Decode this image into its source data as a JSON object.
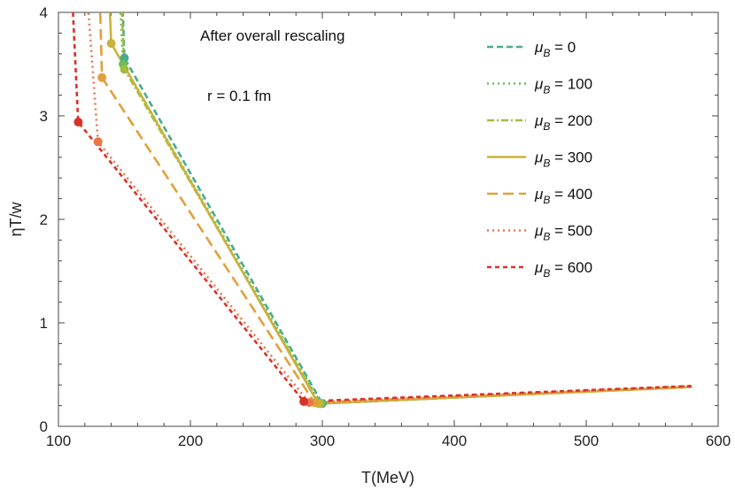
{
  "chart_data": {
    "type": "line",
    "title": "",
    "xlabel": "T(MeV)",
    "ylabel": "ηT/w",
    "xlim": [
      100,
      600
    ],
    "ylim": [
      0,
      4
    ],
    "xticks": [
      100,
      200,
      300,
      400,
      500,
      600
    ],
    "yticks": [
      0,
      1,
      2,
      3,
      4
    ],
    "annotations": [
      "After overall rescaling",
      "r = 0.1 fm"
    ],
    "legend_position": "top-right",
    "grid": false,
    "series": [
      {
        "name": "μB = 0",
        "mu_label": "μ",
        "sub_label": "B",
        "value_label": " = 0",
        "color": "#4aab8e",
        "dash": "7,4",
        "width": 2.6,
        "points": [
          [
            148,
            4.3
          ],
          [
            150,
            3.56
          ],
          [
            300,
            0.22
          ],
          [
            580,
            0.38
          ]
        ],
        "markers": [
          [
            150,
            3.56
          ],
          [
            300,
            0.22
          ]
        ]
      },
      {
        "name": "μB = 100",
        "mu_label": "μ",
        "sub_label": "B",
        "value_label": " = 100",
        "color": "#6cbc5a",
        "dash": "2,4",
        "width": 2.6,
        "points": [
          [
            146,
            4.3
          ],
          [
            149,
            3.5
          ],
          [
            299,
            0.22
          ],
          [
            580,
            0.38
          ]
        ],
        "markers": [
          [
            149,
            3.5
          ],
          [
            299,
            0.22
          ]
        ]
      },
      {
        "name": "μB = 200",
        "mu_label": "μ",
        "sub_label": "B",
        "value_label": " = 200",
        "color": "#a4bc3c",
        "dash": "8,3,2,3",
        "width": 2.6,
        "points": [
          [
            147,
            4.3
          ],
          [
            150,
            3.45
          ],
          [
            298,
            0.22
          ],
          [
            580,
            0.38
          ]
        ],
        "markers": [
          [
            150,
            3.45
          ],
          [
            298,
            0.22
          ]
        ]
      },
      {
        "name": "μB = 300",
        "mu_label": "μ",
        "sub_label": "B",
        "value_label": " = 300",
        "color": "#c9b23c",
        "dash": "",
        "width": 2.6,
        "points": [
          [
            138,
            4.3
          ],
          [
            140,
            3.7
          ],
          [
            297,
            0.22
          ],
          [
            580,
            0.38
          ]
        ],
        "markers": [
          [
            140,
            3.7
          ],
          [
            297,
            0.22
          ]
        ]
      },
      {
        "name": "μB = 400",
        "mu_label": "μ",
        "sub_label": "B",
        "value_label": " = 400",
        "color": "#e2a03a",
        "dash": "12,6",
        "width": 2.6,
        "points": [
          [
            131,
            4.3
          ],
          [
            133,
            3.37
          ],
          [
            294,
            0.23
          ],
          [
            580,
            0.38
          ]
        ],
        "markers": [
          [
            133,
            3.37
          ],
          [
            294,
            0.23
          ]
        ]
      },
      {
        "name": "μB = 500",
        "mu_label": "μ",
        "sub_label": "B",
        "value_label": " = 500",
        "color": "#e97646",
        "dash": "2,4",
        "width": 2.6,
        "points": [
          [
            121,
            4.3
          ],
          [
            130,
            2.75
          ],
          [
            290,
            0.23
          ],
          [
            580,
            0.39
          ]
        ],
        "markers": [
          [
            130,
            2.75
          ],
          [
            290,
            0.23
          ]
        ]
      },
      {
        "name": "μB = 600",
        "mu_label": "μ",
        "sub_label": "B",
        "value_label": " = 600",
        "color": "#d9312b",
        "dash": "5,4",
        "width": 2.6,
        "points": [
          [
            111,
            4.0
          ],
          [
            115,
            2.94
          ],
          [
            286,
            0.24
          ],
          [
            580,
            0.39
          ]
        ],
        "markers": [
          [
            115,
            2.94
          ],
          [
            286,
            0.24
          ]
        ]
      }
    ]
  }
}
